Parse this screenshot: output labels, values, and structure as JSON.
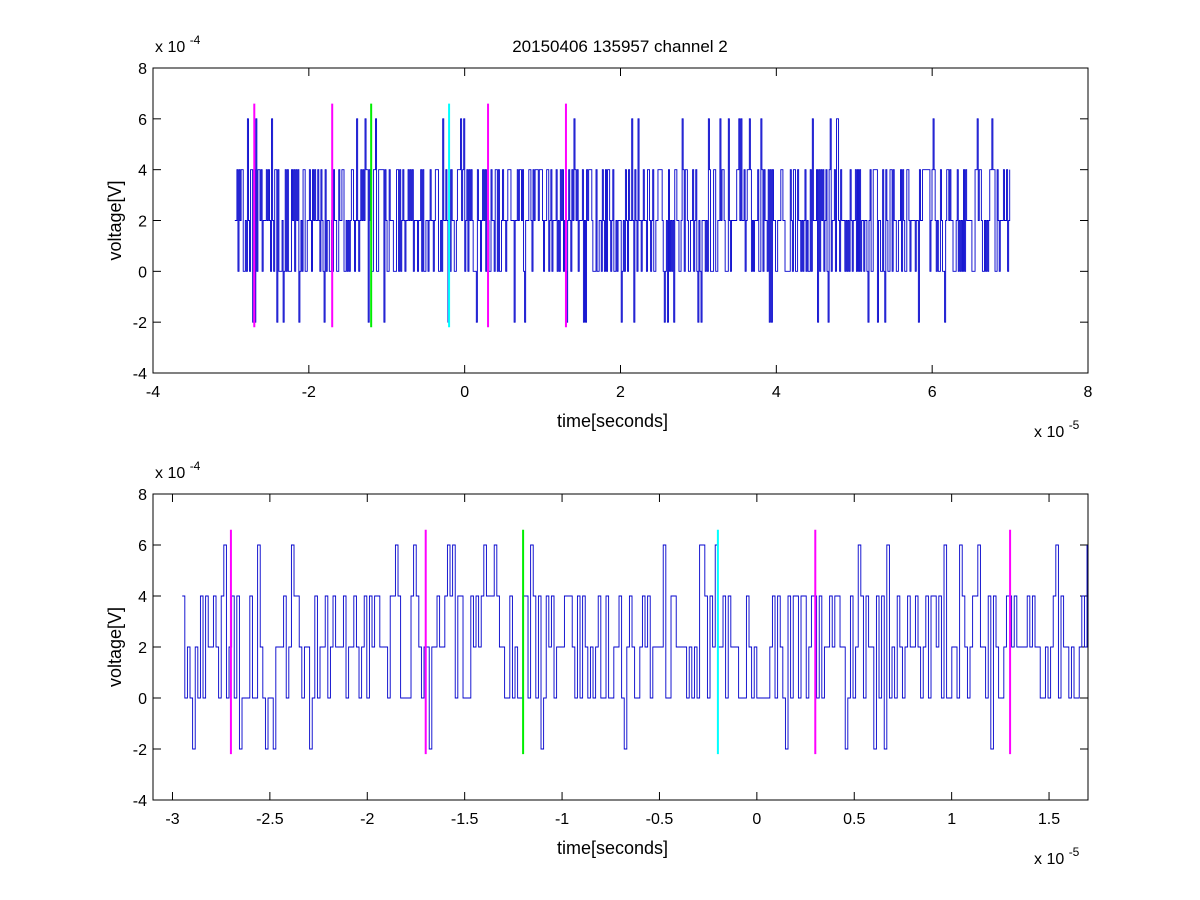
{
  "figure_title": "20150406 135957 channel 2",
  "chart_data": [
    {
      "type": "line",
      "title": "20150406 135957 channel 2",
      "xlabel": "time[seconds]",
      "ylabel": "voltage[V]",
      "x_exponent_label": "x 10",
      "x_exponent": "-5",
      "y_exponent_label": "x 10",
      "y_exponent": "-4",
      "xlim": [
        -4,
        8
      ],
      "ylim": [
        -4,
        8
      ],
      "xticks": [
        -4,
        -2,
        0,
        2,
        4,
        6,
        8
      ],
      "yticks": [
        -4,
        -2,
        0,
        2,
        4,
        6,
        8
      ],
      "xtick_labels": [
        "-4",
        "-2",
        "0",
        "2",
        "4",
        "6",
        "8"
      ],
      "ytick_labels": [
        "-4",
        "-2",
        "0",
        "2",
        "4",
        "6",
        "8"
      ],
      "grid": false,
      "signal": {
        "color": "#0000cc",
        "x_start": -2.95,
        "x_end": 7.0,
        "y_levels": [
          -2,
          0,
          2,
          4,
          6
        ],
        "typical_min": 0,
        "typical_max": 4,
        "peak_max": 6,
        "peak_min": -2
      },
      "markers": [
        {
          "x": -2.7,
          "y_range": [
            -2.2,
            6.6
          ],
          "color": "#ff00ff"
        },
        {
          "x": -1.7,
          "y_range": [
            -2.2,
            6.6
          ],
          "color": "#ff00ff"
        },
        {
          "x": -1.2,
          "y_range": [
            -2.2,
            6.6
          ],
          "color": "#00ee00"
        },
        {
          "x": -0.2,
          "y_range": [
            -2.2,
            6.6
          ],
          "color": "#00ffff"
        },
        {
          "x": 0.3,
          "y_range": [
            -2.2,
            6.6
          ],
          "color": "#ff00ff"
        },
        {
          "x": 1.3,
          "y_range": [
            -2.2,
            6.6
          ],
          "color": "#ff00ff"
        }
      ]
    },
    {
      "type": "line",
      "title": "",
      "xlabel": "time[seconds]",
      "ylabel": "voltage[V]",
      "x_exponent_label": "x 10",
      "x_exponent": "-5",
      "y_exponent_label": "x 10",
      "y_exponent": "-4",
      "xlim": [
        -3.1,
        1.7
      ],
      "ylim": [
        -4,
        8
      ],
      "xticks": [
        -3,
        -2.5,
        -2,
        -1.5,
        -1,
        -0.5,
        0,
        0.5,
        1,
        1.5
      ],
      "yticks": [
        -4,
        -2,
        0,
        2,
        4,
        6,
        8
      ],
      "xtick_labels": [
        "-3",
        "-2.5",
        "-2",
        "-1.5",
        "-1",
        "-0.5",
        "0",
        "0.5",
        "1",
        "1.5"
      ],
      "ytick_labels": [
        "-4",
        "-2",
        "0",
        "2",
        "4",
        "6",
        "8"
      ],
      "grid": false,
      "signal": {
        "color": "#0000cc",
        "x_start": -2.95,
        "x_end": 1.7,
        "y_levels": [
          -2,
          0,
          2,
          4,
          6
        ],
        "typical_min": 0,
        "typical_max": 4,
        "peak_max": 6,
        "peak_min": -2
      },
      "markers": [
        {
          "x": -2.7,
          "y_range": [
            -2.2,
            6.6
          ],
          "color": "#ff00ff"
        },
        {
          "x": -1.7,
          "y_range": [
            -2.2,
            6.6
          ],
          "color": "#ff00ff"
        },
        {
          "x": -1.2,
          "y_range": [
            -2.2,
            6.6
          ],
          "color": "#00ee00"
        },
        {
          "x": -0.2,
          "y_range": [
            -2.2,
            6.6
          ],
          "color": "#00ffff"
        },
        {
          "x": 0.3,
          "y_range": [
            -2.2,
            6.6
          ],
          "color": "#ff00ff"
        },
        {
          "x": 1.3,
          "y_range": [
            -2.2,
            6.6
          ],
          "color": "#ff00ff"
        }
      ]
    }
  ]
}
